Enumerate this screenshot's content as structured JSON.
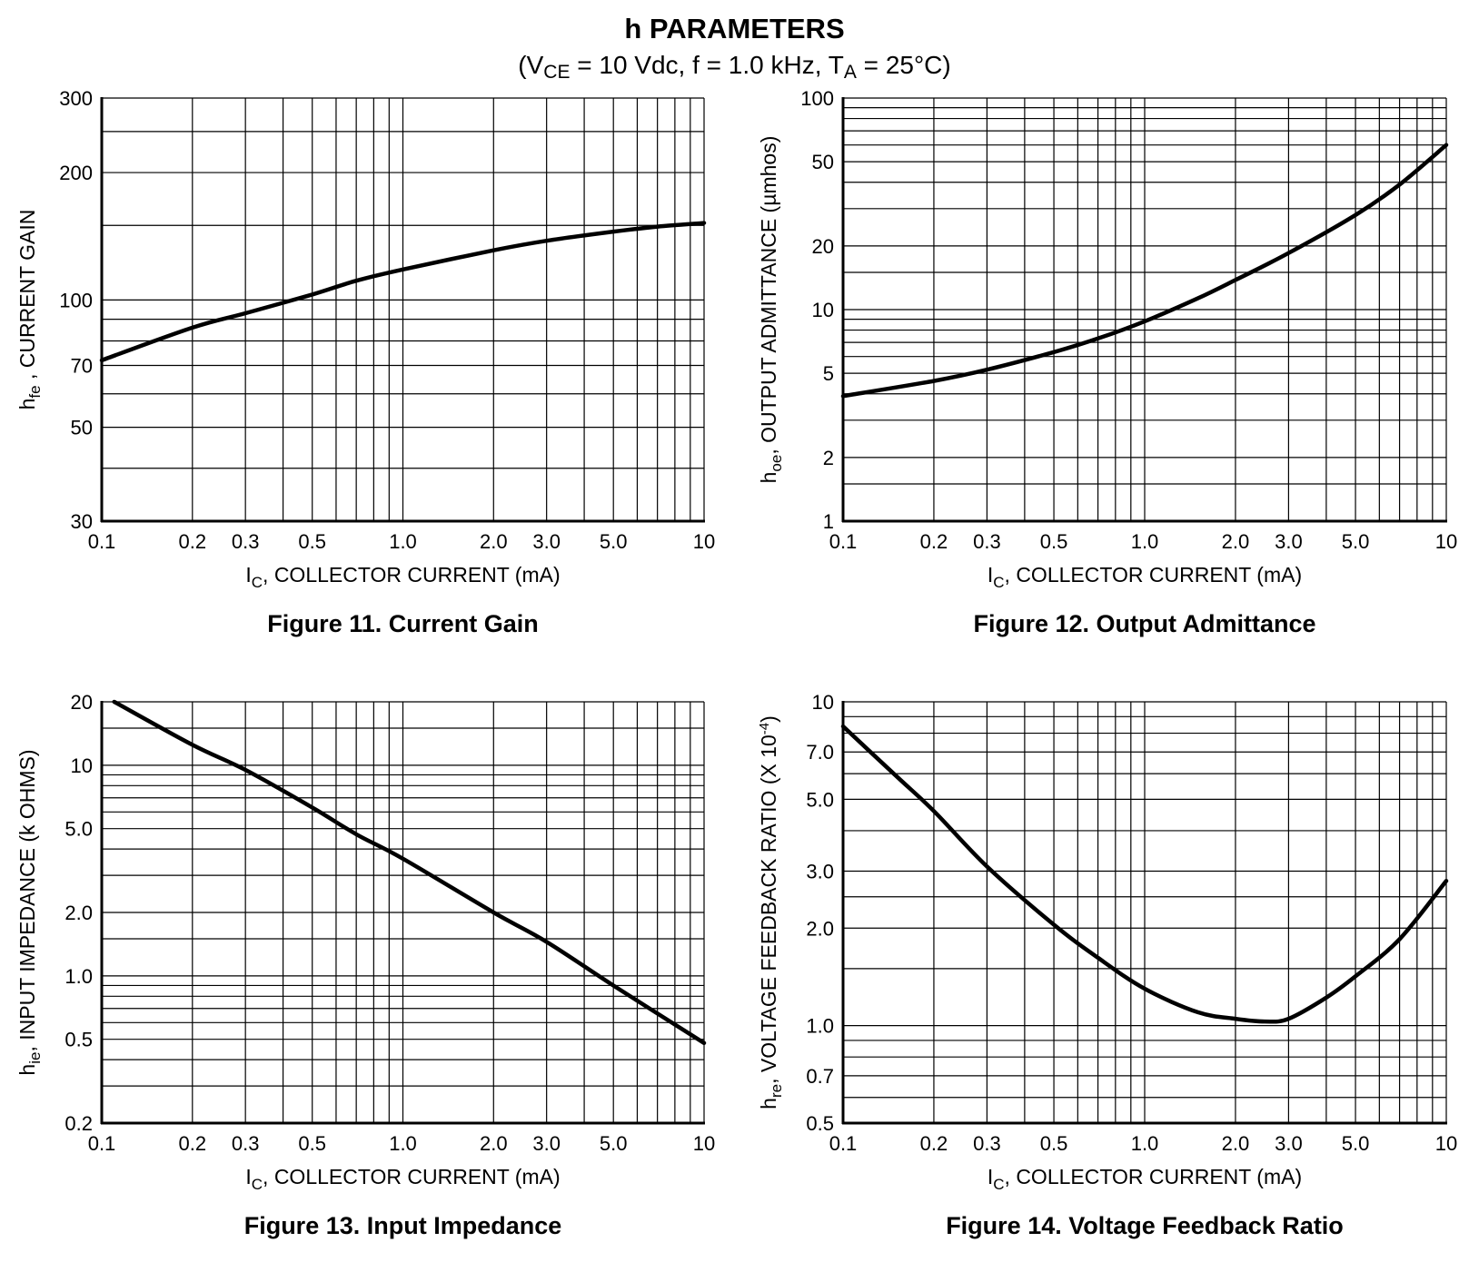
{
  "header": {
    "title": "h PARAMETERS",
    "subtitle_parts": [
      "(V",
      "CE",
      " = 10 Vdc, f = 1.0 kHz, T",
      "A",
      " = 25°C)"
    ]
  },
  "x_axis_common": {
    "label_main": "I",
    "label_sub": "C",
    "label_rest": ", COLLECTOR CURRENT (mA)",
    "scale": "log",
    "range": [
      0.1,
      10
    ],
    "tick_values": [
      0.1,
      0.2,
      0.3,
      0.5,
      1.0,
      2.0,
      3.0,
      5.0,
      10
    ],
    "tick_labels": [
      "0.1",
      "0.2",
      "0.3",
      "0.5",
      "1.0",
      "2.0",
      "3.0",
      "5.0",
      "10"
    ]
  },
  "chart_data": [
    {
      "type": "line",
      "caption": "Figure 11. Current Gain",
      "ylabel_main": "h",
      "ylabel_sub": "fe",
      "ylabel_rest": " , CURRENT GAIN",
      "yscale": "log",
      "ylim": [
        30,
        300
      ],
      "y_ticks": [
        30,
        50,
        70,
        100,
        200,
        300
      ],
      "y_tick_labels": [
        "30",
        "50",
        "70",
        "100",
        "200",
        "300"
      ],
      "y_grid": [
        30,
        40,
        50,
        60,
        70,
        80,
        90,
        100,
        150,
        200,
        250,
        300
      ],
      "grid": true,
      "series": [
        {
          "x": [
            0.1,
            0.2,
            0.3,
            0.5,
            0.7,
            1.0,
            2.0,
            3.0,
            5.0,
            7.0,
            10
          ],
          "y": [
            72,
            86,
            93,
            103,
            111,
            118,
            131,
            138,
            145,
            149,
            152
          ]
        }
      ]
    },
    {
      "type": "line",
      "caption": "Figure 12. Output Admittance",
      "ylabel_main": "h",
      "ylabel_sub": "oe",
      "ylabel_rest": ", OUTPUT ADMITTANCE (µmhos)",
      "yscale": "log",
      "ylim": [
        1,
        100
      ],
      "y_ticks": [
        1,
        2,
        5,
        10,
        20,
        50,
        100
      ],
      "y_tick_labels": [
        "1",
        "2",
        "5",
        "10",
        "20",
        "50",
        "100"
      ],
      "y_grid": [
        1,
        1.5,
        2,
        3,
        4,
        5,
        6,
        7,
        8,
        9,
        10,
        15,
        20,
        30,
        40,
        50,
        60,
        70,
        80,
        90,
        100
      ],
      "grid": true,
      "series": [
        {
          "x": [
            0.1,
            0.2,
            0.3,
            0.5,
            0.7,
            1.0,
            1.5,
            2.0,
            3.0,
            5.0,
            7.0,
            10
          ],
          "y": [
            3.9,
            4.6,
            5.2,
            6.3,
            7.3,
            8.8,
            11.3,
            13.8,
            18.5,
            28,
            39,
            60
          ]
        }
      ]
    },
    {
      "type": "line",
      "caption": "Figure 13. Input Impedance",
      "ylabel_main": "h",
      "ylabel_sub": "ie",
      "ylabel_rest": ", INPUT IMPEDANCE (k OHMS)",
      "yscale": "log",
      "ylim": [
        0.2,
        20
      ],
      "y_ticks": [
        0.2,
        0.5,
        1.0,
        2.0,
        5.0,
        10,
        20
      ],
      "y_tick_labels": [
        "0.2",
        "0.5",
        "1.0",
        "2.0",
        "5.0",
        "10",
        "20"
      ],
      "y_grid": [
        0.2,
        0.3,
        0.4,
        0.5,
        0.6,
        0.7,
        0.8,
        0.9,
        1.0,
        1.5,
        2.0,
        3.0,
        4.0,
        5.0,
        6.0,
        7.0,
        8.0,
        9.0,
        10,
        15,
        20
      ],
      "grid": true,
      "series": [
        {
          "x": [
            0.11,
            0.2,
            0.3,
            0.5,
            0.7,
            1.0,
            2.0,
            3.0,
            5.0,
            10
          ],
          "y": [
            20,
            12.5,
            9.5,
            6.3,
            4.7,
            3.6,
            2.0,
            1.45,
            0.9,
            0.48
          ]
        }
      ]
    },
    {
      "type": "line",
      "caption": "Figure 14. Voltage Feedback Ratio",
      "ylabel_main": "h",
      "ylabel_sub": "re",
      "ylabel_rest": ", VOLTAGE FEEDBACK RATIO (X 10",
      "ylabel_sup": "-4",
      "ylabel_end": ")",
      "yscale": "log",
      "ylim": [
        0.5,
        10
      ],
      "y_ticks": [
        0.5,
        0.7,
        1.0,
        2.0,
        3.0,
        5.0,
        7.0,
        10
      ],
      "y_tick_labels": [
        "0.5",
        "0.7",
        "1.0",
        "2.0",
        "3.0",
        "5.0",
        "7.0",
        "10"
      ],
      "y_grid": [
        0.5,
        0.6,
        0.7,
        0.8,
        0.9,
        1.0,
        1.5,
        2.0,
        2.5,
        3.0,
        4.0,
        5.0,
        6.0,
        7.0,
        8.0,
        9.0,
        10
      ],
      "grid": true,
      "series": [
        {
          "x": [
            0.1,
            0.15,
            0.2,
            0.3,
            0.5,
            0.7,
            1.0,
            1.5,
            2.0,
            2.5,
            3.0,
            4.0,
            5.0,
            7.0,
            10
          ],
          "y": [
            8.4,
            5.9,
            4.6,
            3.1,
            2.05,
            1.62,
            1.3,
            1.1,
            1.05,
            1.03,
            1.05,
            1.22,
            1.42,
            1.85,
            2.8
          ]
        }
      ]
    }
  ]
}
